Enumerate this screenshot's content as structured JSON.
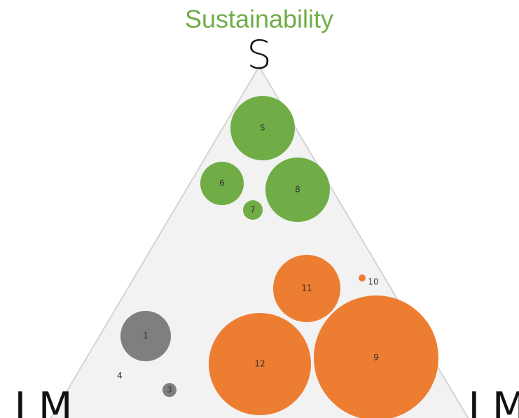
{
  "title": "Sustainability",
  "corners": {
    "top": "S",
    "left": "I M",
    "right": "I M"
  },
  "bubbles": [
    {
      "label": "1"
    },
    {
      "label": "3"
    },
    {
      "label": "4"
    },
    {
      "label": "5"
    },
    {
      "label": "6"
    },
    {
      "label": "7"
    },
    {
      "label": "8"
    },
    {
      "label": "9"
    },
    {
      "label": "10"
    },
    {
      "label": "11"
    },
    {
      "label": "12"
    }
  ]
}
